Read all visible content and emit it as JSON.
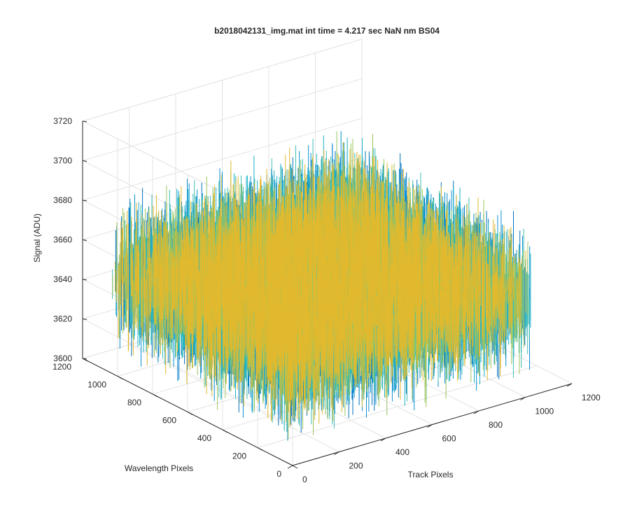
{
  "chart_data": {
    "type": "surface",
    "title": "b2018042131_img.mat int time = 4.217 sec  NaN nm BS04",
    "zlabel": "Signal (ADU)",
    "xlabel": "Track Pixels",
    "ylabel": "Wavelength Pixels",
    "zlim": [
      3600,
      3720
    ],
    "xlim": [
      0,
      1200
    ],
    "ylim": [
      0,
      1200
    ],
    "zticks": [
      3600,
      3620,
      3640,
      3660,
      3680,
      3700,
      3720
    ],
    "xticks": [
      0,
      200,
      400,
      600,
      800,
      1000,
      1200
    ],
    "yticks": [
      0,
      200,
      400,
      600,
      800,
      1000,
      1200
    ],
    "surface": {
      "x_range": [
        0,
        1024
      ],
      "y_range": [
        0,
        1024
      ],
      "mean_signal": 3650,
      "signal_range": [
        3605,
        3710
      ],
      "colormap": [
        "#0072bd",
        "#0a8fd0",
        "#19b2c8",
        "#3fbcb4",
        "#9bc45c",
        "#e0b92e"
      ]
    },
    "grid": true
  }
}
